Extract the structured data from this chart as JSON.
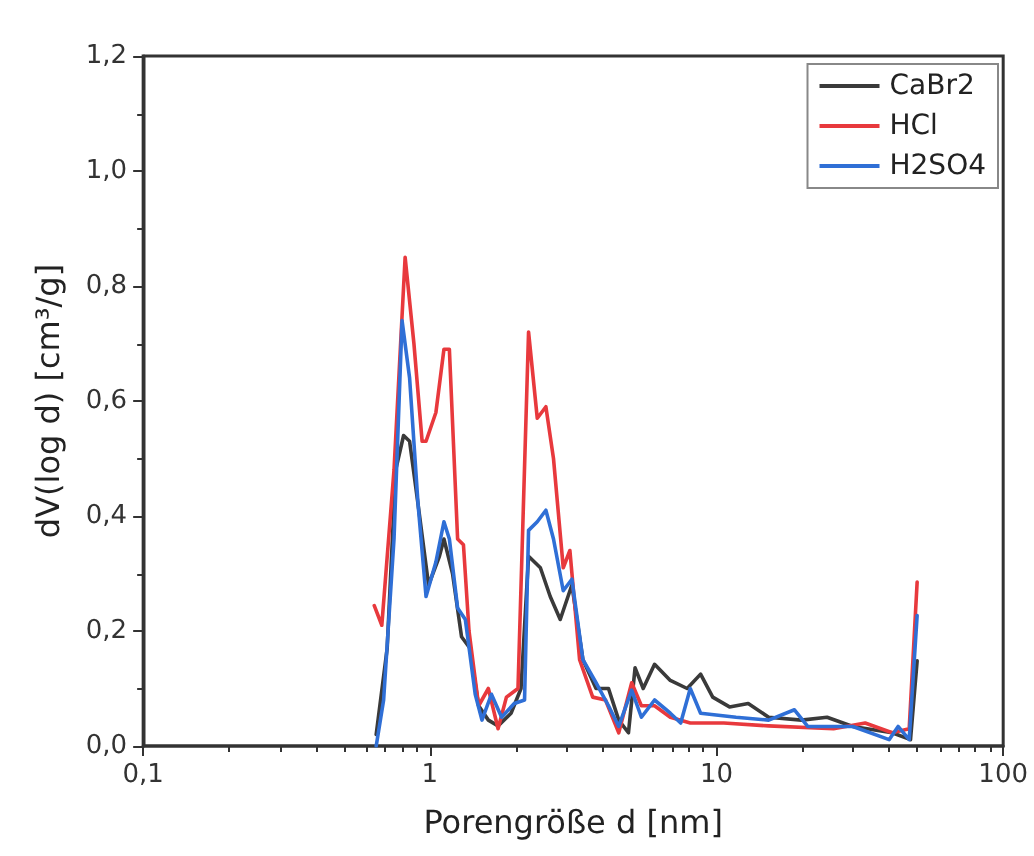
{
  "chart_data": {
    "type": "line",
    "xlabel": "Porengröße d [nm]",
    "ylabel": "dV(log d) [cm³/g]",
    "log": "x",
    "xlim": [
      0.1,
      100
    ],
    "xticks": [
      {
        "value": 0.1,
        "label": "0,1"
      },
      1,
      10,
      100
    ],
    "ylim": [
      0,
      1.2
    ],
    "yticks": [
      {
        "value": 0,
        "label": "0,0"
      },
      {
        "value": 0.2,
        "label": "0,2"
      },
      {
        "value": 0.4,
        "label": "0,4"
      },
      {
        "value": 0.6,
        "label": "0,6"
      },
      {
        "value": 0.8,
        "label": "0,8"
      },
      {
        "value": 1,
        "label": "1,0"
      },
      {
        "value": 1.2,
        "label": "1,2"
      }
    ],
    "grid": false,
    "legend": "top right",
    "marker": "none",
    "line_style": "solid",
    "series": [
      {
        "name": "CaBr2",
        "color": "#3a3a3a",
        "x": [
          0.65,
          0.71,
          0.76,
          0.81,
          0.85,
          0.91,
          0.99,
          1.08,
          1.12,
          1.2,
          1.29,
          1.38,
          1.48,
          1.6,
          1.73,
          1.92,
          2.08,
          2.21,
          2.43,
          2.63,
          2.85,
          3.13,
          3.42,
          3.8,
          4.2,
          4.56,
          4.93,
          5.2,
          5.55,
          6.08,
          6.9,
          7.9,
          8.8,
          9.7,
          11.1,
          12.9,
          15.2,
          19.8,
          24.3,
          29.9,
          41,
          47.5,
          50.1
        ],
        "values": [
          0.02,
          0.17,
          0.48,
          0.54,
          0.53,
          0.42,
          0.28,
          0.33,
          0.36,
          0.3,
          0.19,
          0.17,
          0.07,
          0.045,
          0.035,
          0.057,
          0.1,
          0.33,
          0.31,
          0.26,
          0.22,
          0.28,
          0.15,
          0.1,
          0.1,
          0.045,
          0.023,
          0.136,
          0.1,
          0.142,
          0.114,
          0.1,
          0.125,
          0.085,
          0.068,
          0.074,
          0.05,
          0.045,
          0.05,
          0.034,
          0.023,
          0.011,
          0.148
        ]
      },
      {
        "name": "HCl",
        "color": "#e8393d",
        "x": [
          0.64,
          0.68,
          0.75,
          0.82,
          0.88,
          0.94,
          0.97,
          1.05,
          1.12,
          1.17,
          1.25,
          1.31,
          1.37,
          1.48,
          1.6,
          1.73,
          1.85,
          2.03,
          2.21,
          2.37,
          2.54,
          2.7,
          2.92,
          3.08,
          3.33,
          3.7,
          4.1,
          4.56,
          5.06,
          5.47,
          6.08,
          6.9,
          8.1,
          10.6,
          15.2,
          25.6,
          33,
          41,
          47,
          50.1
        ],
        "values": [
          0.244,
          0.21,
          0.48,
          0.85,
          0.7,
          0.53,
          0.53,
          0.58,
          0.69,
          0.69,
          0.36,
          0.35,
          0.2,
          0.07,
          0.1,
          0.03,
          0.085,
          0.1,
          0.72,
          0.57,
          0.59,
          0.5,
          0.31,
          0.34,
          0.15,
          0.085,
          0.08,
          0.023,
          0.11,
          0.07,
          0.07,
          0.05,
          0.04,
          0.04,
          0.035,
          0.03,
          0.04,
          0.023,
          0.03,
          0.285
        ]
      },
      {
        "name": "H2SO4",
        "color": "#2f6fd6",
        "x": [
          0.65,
          0.69,
          0.75,
          0.8,
          0.85,
          0.91,
          0.97,
          1.05,
          1.12,
          1.17,
          1.25,
          1.33,
          1.44,
          1.52,
          1.64,
          1.78,
          1.97,
          2.14,
          2.21,
          2.37,
          2.54,
          2.7,
          2.92,
          3.13,
          3.42,
          3.8,
          4.2,
          4.56,
          5.06,
          5.47,
          6.08,
          6.9,
          7.5,
          8.1,
          8.8,
          11.7,
          15.2,
          18.7,
          20.8,
          29.9,
          40,
          43,
          47,
          50.1
        ],
        "values": [
          0,
          0.08,
          0.36,
          0.74,
          0.64,
          0.42,
          0.26,
          0.32,
          0.39,
          0.36,
          0.24,
          0.22,
          0.09,
          0.045,
          0.09,
          0.05,
          0.074,
          0.08,
          0.375,
          0.39,
          0.41,
          0.36,
          0.27,
          0.29,
          0.15,
          0.11,
          0.07,
          0.034,
          0.097,
          0.05,
          0.08,
          0.057,
          0.04,
          0.1,
          0.057,
          0.05,
          0.045,
          0.063,
          0.034,
          0.034,
          0.011,
          0.034,
          0.011,
          0.227
        ]
      }
    ]
  }
}
